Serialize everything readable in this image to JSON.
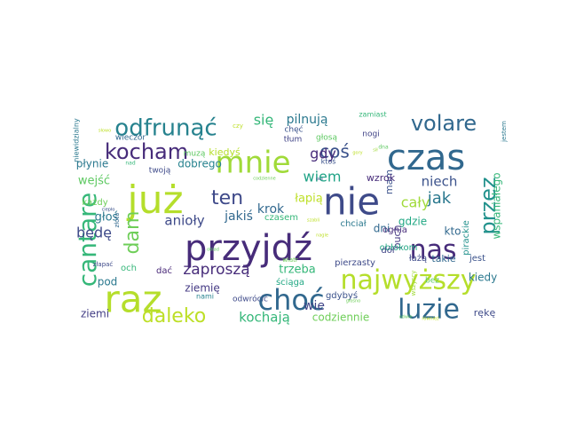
{
  "words": [
    {
      "text": "czas",
      "color": "#31688e"
    },
    {
      "text": "przyjdź",
      "color": "#472c7a"
    },
    {
      "text": "już",
      "color": "#b5de2b"
    },
    {
      "text": "nie",
      "color": "#3e4a89"
    },
    {
      "text": "raz",
      "color": "#b5de2b"
    },
    {
      "text": "mnie",
      "color": "#a0da39"
    },
    {
      "text": "nas",
      "color": "#472c7a"
    },
    {
      "text": "najwyższy",
      "color": "#b5de2b"
    },
    {
      "text": "choć",
      "color": "#31688e"
    },
    {
      "text": "luzie",
      "color": "#31688e"
    },
    {
      "text": "cantare",
      "color": "#35b779"
    },
    {
      "text": "odfrunąć",
      "color": "#26828e"
    },
    {
      "text": "volare",
      "color": "#31688e"
    },
    {
      "text": "kocham",
      "color": "#472c7a"
    },
    {
      "text": "daleko",
      "color": "#bddf26"
    },
    {
      "text": "przez",
      "color": "#21918c"
    },
    {
      "text": "dam",
      "color": "#6ece58"
    },
    {
      "text": "coś",
      "color": "#3b528b"
    },
    {
      "text": "ten",
      "color": "#3e4989"
    },
    {
      "text": "zaproszą",
      "color": "#472c7a"
    },
    {
      "text": "się",
      "color": "#35b779"
    },
    {
      "text": "cały",
      "color": "#a0da39"
    },
    {
      "text": "jak",
      "color": "#2a788e"
    },
    {
      "text": "wiem",
      "color": "#20a386"
    },
    {
      "text": "gdy",
      "color": "#472c7a"
    },
    {
      "text": "niech",
      "color": "#3b528b"
    },
    {
      "text": "pilnują",
      "color": "#2a788e"
    },
    {
      "text": "kochają",
      "color": "#35b779"
    },
    {
      "text": "będę",
      "color": "#3e4a89"
    },
    {
      "text": "anioły",
      "color": "#3e4a89"
    },
    {
      "text": "krok",
      "color": "#31688e"
    },
    {
      "text": "jakiś",
      "color": "#31688e"
    },
    {
      "text": "łapią",
      "color": "#bddf26"
    },
    {
      "text": "wie",
      "color": "#414487"
    },
    {
      "text": "trzeba",
      "color": "#35b779"
    },
    {
      "text": "codziennie",
      "color": "#6ece58"
    },
    {
      "text": "głoś",
      "color": "#2a788e"
    },
    {
      "text": "wejść",
      "color": "#5ec962"
    },
    {
      "text": "płynie",
      "color": "#2a788e"
    },
    {
      "text": "dobrego",
      "color": "#26828e"
    },
    {
      "text": "kiedyś",
      "color": "#b5de2b"
    },
    {
      "text": "pod",
      "color": "#2a788e"
    },
    {
      "text": "ziemię",
      "color": "#443983"
    },
    {
      "text": "ziemi",
      "color": "#433e85"
    },
    {
      "text": "wspaniałego",
      "color": "#35b779"
    },
    {
      "text": "kiedy",
      "color": "#2a788e"
    },
    {
      "text": "rękę",
      "color": "#3e4a89"
    },
    {
      "text": "gdzie",
      "color": "#22a884"
    },
    {
      "text": "kto",
      "color": "#31688e"
    },
    {
      "text": "dni",
      "color": "#31688e"
    },
    {
      "text": "mam",
      "color": "#3b528b"
    },
    {
      "text": "wzrok",
      "color": "#472c7a"
    },
    {
      "text": "puch",
      "color": "#443983"
    },
    {
      "text": "łażą",
      "color": "#3e4a89"
    },
    {
      "text": "takie",
      "color": "#31688e"
    },
    {
      "text": "jest",
      "color": "#3b528b"
    },
    {
      "text": "pirackie",
      "color": "#21918c"
    },
    {
      "text": "pierzasty",
      "color": "#3e4a89"
    },
    {
      "text": "ściąga",
      "color": "#22a884"
    },
    {
      "text": "gdybyś",
      "color": "#3b528b"
    },
    {
      "text": "czasem",
      "color": "#35b779"
    },
    {
      "text": "chciał",
      "color": "#2a788e"
    },
    {
      "text": "obłokom",
      "color": "#22a884"
    },
    {
      "text": "ognia",
      "color": "#472c7a"
    },
    {
      "text": "dół",
      "color": "#414487"
    },
    {
      "text": "bez",
      "color": "#5ec962"
    },
    {
      "text": "odwrócić",
      "color": "#3e4a89"
    },
    {
      "text": "dać",
      "color": "#482878"
    },
    {
      "text": "och",
      "color": "#35b779"
    },
    {
      "text": "każdy",
      "color": "#6ece58"
    },
    {
      "text": "twoją",
      "color": "#3e4a89"
    },
    {
      "text": "muzą",
      "color": "#5ec962"
    },
    {
      "text": "wieczór",
      "color": "#31688e"
    },
    {
      "text": "chęć",
      "color": "#3b528b"
    },
    {
      "text": "tłum",
      "color": "#414487"
    },
    {
      "text": "głosą",
      "color": "#5ec962"
    },
    {
      "text": "ktoś",
      "color": "#3b528b"
    },
    {
      "text": "nogi",
      "color": "#414487"
    },
    {
      "text": "zamiast",
      "color": "#35b779"
    },
    {
      "text": "jestem",
      "color": "#2a788e"
    },
    {
      "text": "niewidzialny",
      "color": "#2a788e"
    },
    {
      "text": "złoto",
      "color": "#31688e"
    },
    {
      "text": "złapać",
      "color": "#3e4a89"
    },
    {
      "text": "nami",
      "color": "#26828e"
    },
    {
      "text": "wiatr",
      "color": "#6ece58"
    },
    {
      "text": "dna",
      "color": "#5ec962"
    },
    {
      "text": "wszyscy",
      "color": "#a0da39"
    },
    {
      "text": "czy",
      "color": "#bddf26"
    },
    {
      "text": "nad",
      "color": "#35b779"
    },
    {
      "text": "ciepło",
      "color": "#3b528b"
    },
    {
      "text": "odwie",
      "color": "#5ec962"
    },
    {
      "text": "również",
      "color": "#bddf26"
    },
    {
      "text": "codzienne",
      "color": "#6ece58"
    },
    {
      "text": "słoń",
      "color": "#3e4a89"
    },
    {
      "text": "szabli",
      "color": "#bddf26"
    },
    {
      "text": "nagle",
      "color": "#bddf26"
    },
    {
      "text": "sił",
      "color": "#a0da39"
    },
    {
      "text": "obiad",
      "color": "#5ec962"
    },
    {
      "text": "głośno",
      "color": "#6ece58"
    },
    {
      "text": "gory",
      "color": "#bddf26"
    },
    {
      "text": "słowo",
      "color": "#bddf26"
    }
  ]
}
